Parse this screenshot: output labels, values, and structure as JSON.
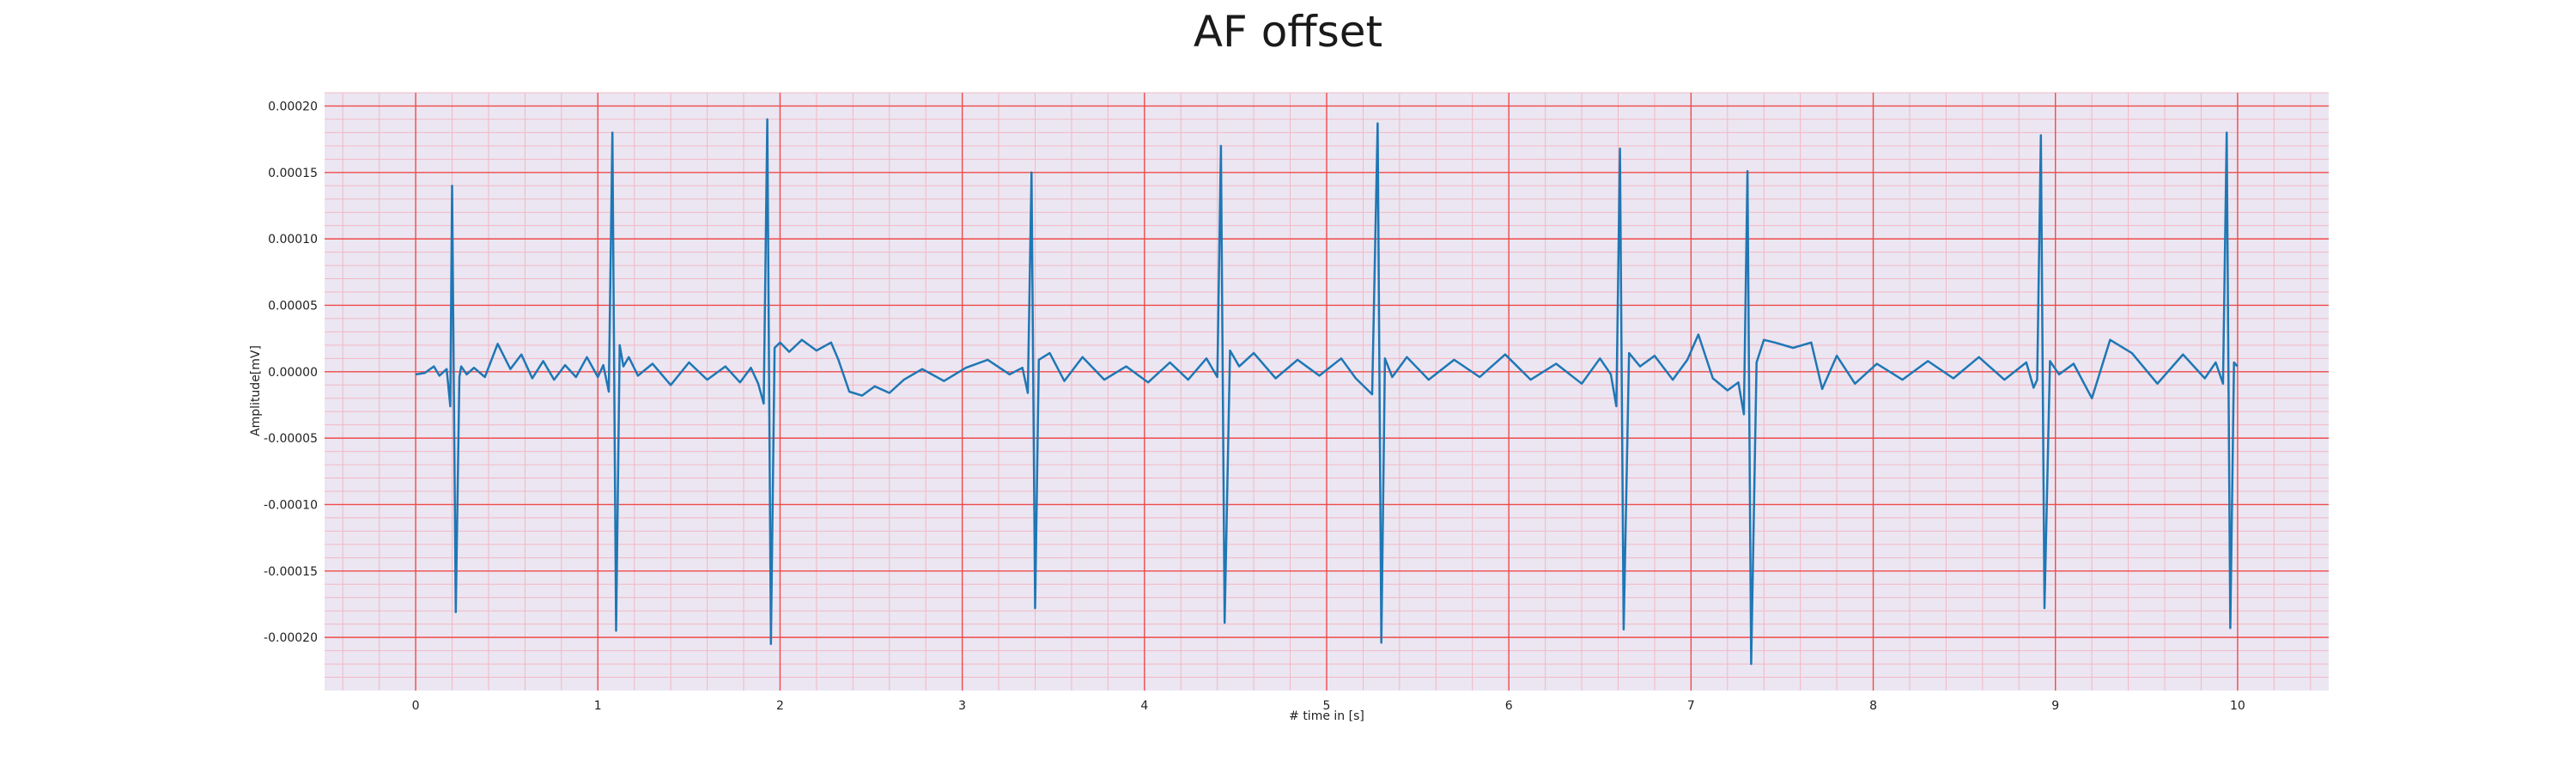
{
  "chart_data": {
    "type": "line",
    "title": "AF offset",
    "xlabel": "# time in [s]",
    "ylabel": "Amplitude[mV]",
    "xlim": [
      -0.5,
      10.5
    ],
    "ylim": [
      -0.00024,
      0.00021
    ],
    "xticks": [
      0,
      1,
      2,
      3,
      4,
      5,
      6,
      7,
      8,
      9,
      10
    ],
    "xtick_labels": [
      "0",
      "1",
      "2",
      "3",
      "4",
      "5",
      "6",
      "7",
      "8",
      "9",
      "10"
    ],
    "yticks": [
      -0.0002,
      -0.00015,
      -0.0001,
      -5e-05,
      0.0,
      5e-05,
      0.0001,
      0.00015,
      0.0002
    ],
    "ytick_labels": [
      "-0.00020",
      "-0.00015",
      "-0.00010",
      "-0.00005",
      "0.00000",
      "0.00005",
      "0.00010",
      "0.00015",
      "0.00020"
    ],
    "grid": true,
    "major_grid_color": "#f04a4a",
    "minor_grid_color": "#f2b8c4",
    "plot_background": "#ebe6f2",
    "series": [
      {
        "color": "#1f77b4",
        "x": [
          0.0,
          0.05,
          0.1,
          0.13,
          0.17,
          0.19,
          0.2,
          0.22,
          0.24,
          0.25,
          0.28,
          0.32,
          0.38,
          0.45,
          0.52,
          0.58,
          0.64,
          0.7,
          0.76,
          0.82,
          0.88,
          0.94,
          1.0,
          1.03,
          1.06,
          1.08,
          1.1,
          1.12,
          1.14,
          1.17,
          1.22,
          1.3,
          1.4,
          1.5,
          1.6,
          1.7,
          1.78,
          1.84,
          1.88,
          1.91,
          1.93,
          1.95,
          1.97,
          2.0,
          2.05,
          2.12,
          2.2,
          2.28,
          2.32,
          2.38,
          2.45,
          2.52,
          2.6,
          2.68,
          2.78,
          2.9,
          3.02,
          3.14,
          3.26,
          3.33,
          3.36,
          3.38,
          3.4,
          3.42,
          3.48,
          3.56,
          3.66,
          3.78,
          3.9,
          4.02,
          4.14,
          4.24,
          4.34,
          4.4,
          4.42,
          4.44,
          4.47,
          4.52,
          4.6,
          4.72,
          4.84,
          4.96,
          5.08,
          5.16,
          5.25,
          5.28,
          5.3,
          5.32,
          5.36,
          5.44,
          5.56,
          5.7,
          5.84,
          5.98,
          6.12,
          6.26,
          6.4,
          6.5,
          6.56,
          6.59,
          6.61,
          6.63,
          6.66,
          6.72,
          6.8,
          6.9,
          6.98,
          7.04,
          7.12,
          7.2,
          7.26,
          7.29,
          7.31,
          7.33,
          7.36,
          7.4,
          7.46,
          7.56,
          7.66,
          7.72,
          7.8,
          7.9,
          8.02,
          8.16,
          8.3,
          8.44,
          8.58,
          8.72,
          8.84,
          8.88,
          8.9,
          8.92,
          8.94,
          8.97,
          9.02,
          9.1,
          9.2,
          9.3,
          9.42,
          9.56,
          9.7,
          9.82,
          9.88,
          9.92,
          9.94,
          9.96,
          9.98,
          10.0
        ],
        "y": [
          -2e-06,
          -1e-06,
          4e-06,
          -3e-06,
          2e-06,
          -2.6e-05,
          0.00014,
          -0.000181,
          -4e-06,
          4e-06,
          -2e-06,
          3e-06,
          -4e-06,
          2.1e-05,
          2e-06,
          1.3e-05,
          -5e-06,
          8e-06,
          -6e-06,
          5e-06,
          -4e-06,
          1.1e-05,
          -4e-06,
          5e-06,
          -1.5e-05,
          0.00018,
          -0.000195,
          2e-05,
          4e-06,
          1.1e-05,
          -3e-06,
          6e-06,
          -1e-05,
          7e-06,
          -6e-06,
          4e-06,
          -8e-06,
          3e-06,
          -9e-06,
          -2.4e-05,
          0.00019,
          -0.000205,
          1.8e-05,
          2.2e-05,
          1.5e-05,
          2.4e-05,
          1.6e-05,
          2.2e-05,
          9e-06,
          -1.5e-05,
          -1.8e-05,
          -1.1e-05,
          -1.6e-05,
          -6e-06,
          2e-06,
          -7e-06,
          3e-06,
          9e-06,
          -2e-06,
          3e-06,
          -1.6e-05,
          0.00015,
          -0.000178,
          9e-06,
          1.4e-05,
          -7e-06,
          1.1e-05,
          -6e-06,
          4e-06,
          -8e-06,
          7e-06,
          -6e-06,
          1e-05,
          -4e-06,
          0.00017,
          -0.000189,
          1.6e-05,
          4e-06,
          1.4e-05,
          -5e-06,
          9e-06,
          -3e-06,
          1e-05,
          -5e-06,
          -1.7e-05,
          0.000187,
          -0.000204,
          1e-05,
          -4e-06,
          1.1e-05,
          -6e-06,
          9e-06,
          -4e-06,
          1.3e-05,
          -6e-06,
          6e-06,
          -9e-06,
          1e-05,
          -2e-06,
          -2.6e-05,
          0.000168,
          -0.000194,
          1.4e-05,
          4e-06,
          1.2e-05,
          -6e-06,
          9e-06,
          2.8e-05,
          -5e-06,
          -1.4e-05,
          -8e-06,
          -3.2e-05,
          0.000151,
          -0.00022,
          7e-06,
          2.4e-05,
          2.2e-05,
          1.8e-05,
          2.2e-05,
          -1.3e-05,
          1.2e-05,
          -9e-06,
          6e-06,
          -6e-06,
          8e-06,
          -5e-06,
          1.1e-05,
          -6e-06,
          7e-06,
          -1.2e-05,
          -6e-06,
          0.000178,
          -0.000178,
          8e-06,
          -2e-06,
          6e-06,
          -2e-05,
          2.4e-05,
          1.4e-05,
          -9e-06,
          1.3e-05,
          -5e-06,
          7e-06,
          -9e-06,
          0.00018,
          -0.000193,
          7e-06,
          4e-06
        ]
      }
    ]
  }
}
